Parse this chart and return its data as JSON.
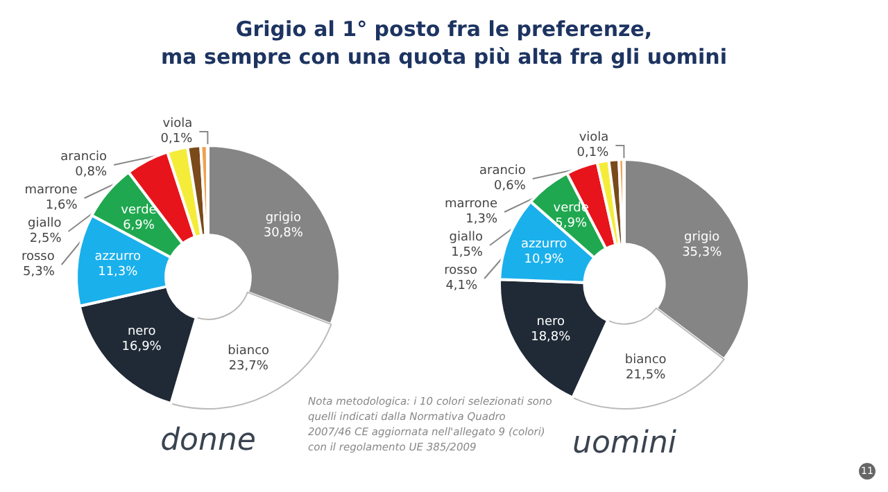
{
  "chart_data": [
    {
      "type": "donut",
      "title": "Grigio al 1° posto fra le preferenze,\nma sempre con una quota più alta fra gli uomini",
      "subtitle": "donne",
      "categories": [
        "grigio",
        "bianco",
        "nero",
        "azzurro",
        "verde",
        "rosso",
        "giallo",
        "marrone",
        "arancio",
        "viola"
      ],
      "values": [
        30.8,
        23.7,
        16.9,
        11.3,
        6.9,
        5.3,
        2.5,
        1.6,
        0.8,
        0.1
      ],
      "colors": [
        "#858585",
        "#ffffff",
        "#1f2a36",
        "#1ab0ec",
        "#1fa84f",
        "#e8141b",
        "#f5ec3a",
        "#7a4a1a",
        "#f0a050",
        "#7a3d8f"
      ],
      "value_labels": [
        "30,8%",
        "23,7%",
        "16,9%",
        "11,3%",
        "6,9%",
        "5,3%",
        "2,5%",
        "1,6%",
        "0,8%",
        "0,1%"
      ],
      "legend": false
    },
    {
      "type": "donut",
      "subtitle": "uomini",
      "categories": [
        "grigio",
        "bianco",
        "nero",
        "azzurro",
        "verde",
        "rosso",
        "giallo",
        "marrone",
        "arancio",
        "viola"
      ],
      "values": [
        35.3,
        21.5,
        18.8,
        10.9,
        5.9,
        4.1,
        1.5,
        1.3,
        0.6,
        0.1
      ],
      "colors": [
        "#858585",
        "#ffffff",
        "#1f2a36",
        "#1ab0ec",
        "#1fa84f",
        "#e8141b",
        "#f5ec3a",
        "#7a4a1a",
        "#f0a050",
        "#7a3d8f"
      ],
      "value_labels": [
        "35,3%",
        "21,5%",
        "18,8%",
        "10,9%",
        "5,9%",
        "4,1%",
        "1,5%",
        "1,3%",
        "0,6%",
        "0,1%"
      ],
      "legend": false,
      "annotations": [
        "Nota metodologica: i 10 colori selezionati sono\nquelli indicati dalla Normativa Quadro\n2007/46 CE aggiornata nell'allegato 9 (colori)\ncon il regolamento UE 385/2009",
        "11"
      ]
    }
  ]
}
